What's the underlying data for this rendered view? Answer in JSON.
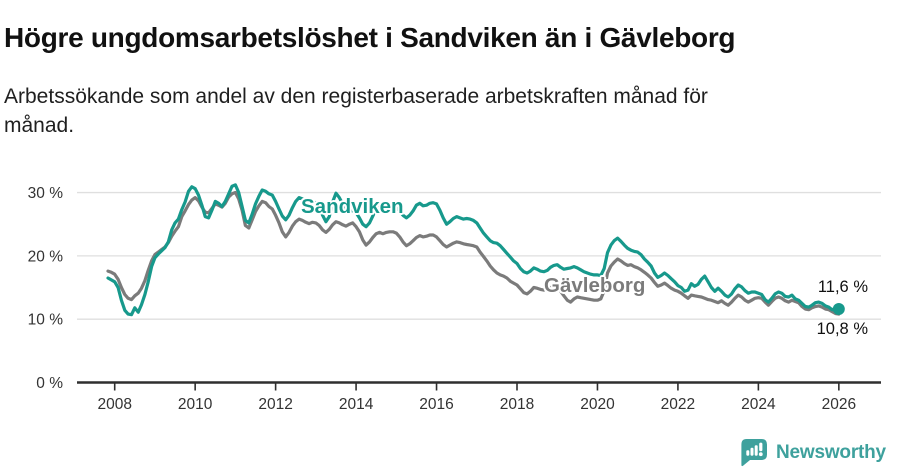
{
  "header": {
    "title": "Högre ungdomsarbetslöshet i Sandviken än i Gävleborg",
    "subtitle": "Arbetssökande som andel av den registerbaserade arbetskraften månad för månad."
  },
  "footer": {
    "brand": "Newsworthy",
    "brand_color": "#3ea19d"
  },
  "chart_data": {
    "type": "line",
    "frequency": "monthly",
    "x_start": {
      "year": 2007,
      "month": 11
    },
    "x_axis": {
      "ticks": [
        2008,
        2010,
        2012,
        2014,
        2016,
        2018,
        2020,
        2022,
        2024,
        2026
      ],
      "labels": [
        "2008",
        "2010",
        "2012",
        "2014",
        "2016",
        "2018",
        "2020",
        "2022",
        "2024",
        "2026"
      ]
    },
    "y_axis": {
      "ticks": [
        0,
        10,
        20,
        30
      ],
      "labels": [
        "0 %",
        "10 %",
        "20 %",
        "30 %"
      ],
      "lim": [
        0,
        33
      ],
      "unit": "%"
    },
    "grid": "horizontal",
    "series": [
      {
        "id": "sandviken",
        "name": "Sandviken",
        "color": "#17998c",
        "end_label": "11,6 %",
        "end_value": 11.6,
        "end_marker": true,
        "values": [
          16.5,
          16.2,
          15.9,
          15.0,
          13.0,
          11.4,
          10.8,
          10.7,
          11.8,
          11.1,
          12.3,
          13.9,
          15.9,
          18.3,
          19.7,
          20.3,
          20.8,
          21.3,
          22.2,
          24.1,
          25.2,
          25.8,
          27.3,
          28.5,
          30.2,
          30.9,
          30.6,
          29.6,
          28.0,
          26.2,
          26.0,
          27.2,
          28.6,
          28.3,
          27.8,
          28.6,
          29.8,
          31.0,
          31.2,
          30.0,
          27.8,
          25.6,
          25.2,
          26.6,
          28.2,
          29.4,
          30.4,
          30.2,
          29.8,
          29.6,
          28.6,
          27.4,
          26.3,
          25.7,
          26.4,
          27.6,
          28.6,
          29.2,
          29.0,
          28.6,
          28.2,
          28.5,
          28.4,
          27.8,
          26.4,
          25.4,
          26.2,
          28.5,
          29.9,
          29.2,
          28.2,
          27.4,
          27.0,
          27.2,
          26.8,
          26.0,
          25.0,
          24.6,
          25.2,
          26.3,
          27.4,
          27.8,
          27.2,
          26.9,
          27.3,
          27.6,
          27.6,
          27.1,
          26.4,
          26.0,
          26.4,
          27.1,
          28.0,
          28.3,
          27.9,
          28.0,
          28.3,
          28.4,
          28.2,
          27.2,
          26.0,
          25.0,
          25.4,
          25.9,
          26.2,
          26.0,
          25.8,
          25.9,
          25.8,
          25.6,
          25.2,
          24.4,
          23.6,
          23.0,
          22.4,
          22.1,
          22.0,
          21.6,
          21.0,
          20.4,
          19.8,
          19.2,
          18.8,
          18.0,
          17.5,
          17.3,
          17.6,
          18.1,
          17.9,
          17.6,
          17.5,
          17.7,
          18.2,
          18.5,
          18.6,
          18.2,
          17.9,
          18.0,
          18.1,
          18.3,
          18.1,
          17.8,
          17.5,
          17.3,
          17.1,
          17.0,
          17.0,
          16.9,
          18.0,
          20.5,
          21.7,
          22.4,
          22.8,
          22.3,
          21.7,
          21.2,
          20.9,
          20.7,
          20.6,
          20.2,
          19.5,
          19.0,
          18.4,
          17.3,
          16.6,
          16.9,
          17.3,
          16.9,
          16.4,
          15.9,
          15.3,
          15.0,
          14.4,
          14.6,
          15.6,
          15.2,
          15.5,
          16.3,
          16.8,
          15.9,
          15.0,
          14.4,
          14.9,
          14.4,
          13.8,
          13.5,
          14.0,
          14.8,
          15.4,
          15.1,
          14.5,
          14.1,
          14.3,
          14.3,
          14.1,
          13.9,
          13.1,
          12.7,
          13.3,
          14.0,
          14.3,
          14.1,
          13.6,
          13.5,
          13.8,
          13.2,
          13.0,
          12.5,
          12.0,
          11.9,
          12.2,
          12.6,
          12.7,
          12.5,
          12.1,
          11.9,
          11.5,
          11.7,
          11.6
        ]
      },
      {
        "id": "gavleborg",
        "name": "Gävleborg",
        "color": "#7b7b7b",
        "end_label": "10,8 %",
        "end_value": 10.8,
        "end_marker": false,
        "values": [
          17.6,
          17.4,
          17.1,
          16.3,
          15.0,
          13.9,
          13.3,
          13.1,
          13.7,
          14.1,
          14.9,
          16.1,
          17.7,
          19.2,
          20.2,
          20.6,
          21.0,
          21.4,
          22.1,
          23.1,
          23.9,
          24.6,
          26.2,
          27.1,
          28.1,
          28.8,
          29.2,
          28.7,
          27.7,
          26.9,
          26.8,
          27.5,
          28.2,
          28.0,
          27.7,
          28.3,
          29.3,
          29.8,
          30.0,
          29.0,
          27.2,
          24.8,
          24.4,
          25.7,
          27.0,
          27.9,
          28.6,
          28.4,
          27.8,
          27.4,
          26.4,
          25.2,
          23.8,
          23.0,
          23.7,
          24.7,
          25.4,
          25.8,
          25.6,
          25.3,
          25.1,
          25.3,
          25.2,
          24.8,
          24.1,
          23.7,
          24.2,
          24.9,
          25.4,
          25.2,
          24.9,
          24.7,
          25.0,
          25.2,
          24.6,
          23.8,
          22.5,
          21.7,
          22.2,
          22.9,
          23.5,
          23.7,
          23.5,
          23.7,
          23.8,
          23.8,
          23.6,
          23.0,
          22.2,
          21.6,
          21.9,
          22.4,
          22.9,
          23.2,
          23.0,
          23.1,
          23.3,
          23.3,
          23.0,
          22.4,
          21.8,
          21.4,
          21.7,
          22.0,
          22.2,
          22.1,
          21.9,
          21.8,
          21.7,
          21.6,
          21.4,
          20.6,
          19.9,
          19.2,
          18.4,
          17.8,
          17.3,
          17.0,
          16.8,
          16.5,
          16.0,
          15.7,
          15.4,
          14.8,
          14.2,
          14.0,
          14.4,
          15.0,
          14.9,
          14.7,
          14.6,
          14.8,
          15.0,
          15.2,
          15.0,
          14.4,
          13.7,
          13.0,
          12.7,
          13.2,
          13.5,
          13.4,
          13.3,
          13.2,
          13.1,
          13.0,
          13.0,
          13.2,
          14.5,
          17.3,
          18.4,
          19.0,
          19.5,
          19.2,
          18.8,
          18.5,
          18.6,
          18.3,
          18.1,
          17.8,
          17.4,
          17.0,
          16.5,
          15.8,
          15.2,
          15.4,
          15.7,
          15.3,
          14.9,
          14.6,
          14.4,
          14.1,
          13.7,
          13.3,
          13.8,
          13.7,
          13.6,
          13.5,
          13.3,
          13.1,
          13.0,
          12.8,
          12.6,
          12.9,
          12.5,
          12.2,
          12.7,
          13.3,
          13.8,
          13.5,
          13.0,
          12.7,
          13.0,
          13.3,
          13.4,
          13.3,
          12.7,
          12.2,
          12.8,
          13.3,
          13.5,
          13.3,
          12.9,
          12.7,
          13.0,
          12.8,
          12.6,
          12.0,
          11.6,
          11.5,
          11.8,
          12.0,
          12.1,
          11.9,
          11.6,
          11.5,
          11.2,
          10.9,
          10.8
        ]
      }
    ]
  }
}
